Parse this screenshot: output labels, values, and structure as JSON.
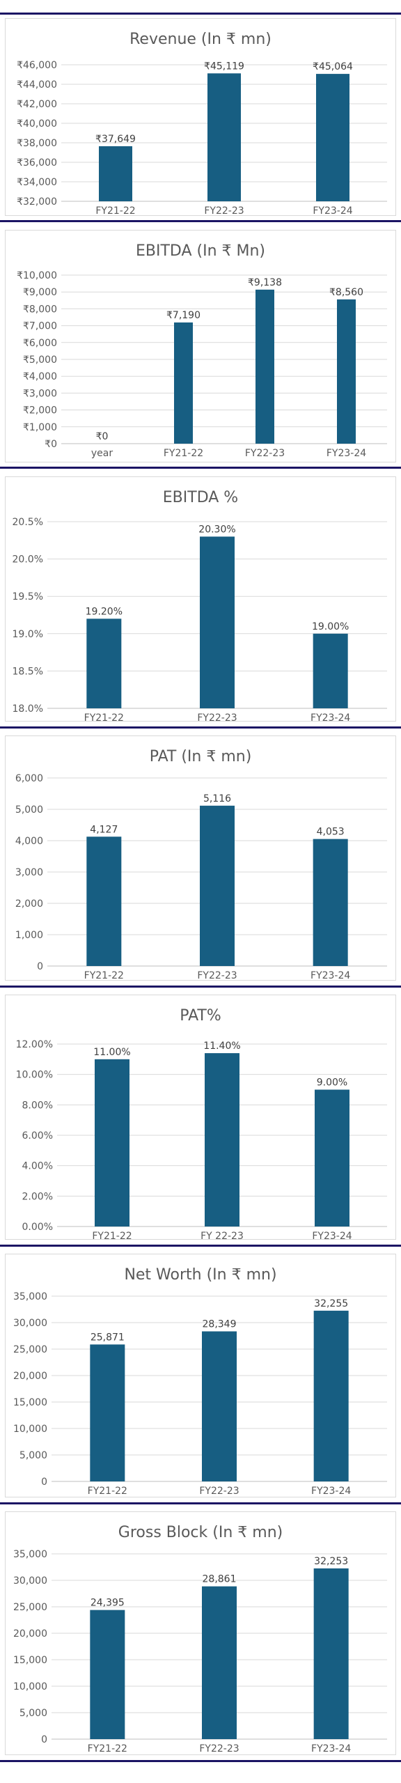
{
  "colors": {
    "bar": "#175e82",
    "separator": "#1b1464",
    "text": "#595959",
    "grid": "#d9d9d9"
  },
  "chart_data": [
    {
      "type": "bar",
      "title": "Revenue (In ₹ mn)",
      "categories": [
        "FY21-22",
        "FY22-23",
        "FY23-24"
      ],
      "values": [
        37649,
        45119,
        45064
      ],
      "data_labels": [
        "₹37,649",
        "₹45,119",
        "₹45,064"
      ],
      "ylim": [
        32000,
        46000
      ],
      "yticks": [
        32000,
        34000,
        36000,
        38000,
        40000,
        42000,
        44000,
        46000
      ],
      "ytick_labels": [
        "₹32,000",
        "₹34,000",
        "₹36,000",
        "₹38,000",
        "₹40,000",
        "₹42,000",
        "₹44,000",
        "₹46,000"
      ],
      "grid": true
    },
    {
      "type": "bar",
      "title": "EBITDA (In ₹ Mn)",
      "categories": [
        "year",
        "FY21-22",
        "FY22-23",
        "FY23-24"
      ],
      "values": [
        0,
        7190,
        9138,
        8560
      ],
      "data_labels": [
        "₹0",
        "₹7,190",
        "₹9,138",
        "₹8,560"
      ],
      "ylim": [
        0,
        10000
      ],
      "yticks": [
        0,
        1000,
        2000,
        3000,
        4000,
        5000,
        6000,
        7000,
        8000,
        9000,
        10000
      ],
      "ytick_labels": [
        "₹0",
        "₹1,000",
        "₹2,000",
        "₹3,000",
        "₹4,000",
        "₹5,000",
        "₹6,000",
        "₹7,000",
        "₹8,000",
        "₹9,000",
        "₹10,000"
      ],
      "grid": true
    },
    {
      "type": "bar",
      "title": "EBITDA %",
      "categories": [
        "FY21-22",
        "FY22-23",
        "FY23-24"
      ],
      "values": [
        19.2,
        20.3,
        19.0
      ],
      "data_labels": [
        "19.20%",
        "20.30%",
        "19.00%"
      ],
      "ylim": [
        18.0,
        20.5
      ],
      "yticks": [
        18.0,
        18.5,
        19.0,
        19.5,
        20.0,
        20.5
      ],
      "ytick_labels": [
        "18.0%",
        "18.5%",
        "19.0%",
        "19.5%",
        "20.0%",
        "20.5%"
      ],
      "grid": true
    },
    {
      "type": "bar",
      "title": "PAT (In ₹ mn)",
      "categories": [
        "FY21-22",
        "FY22-23",
        "FY23-24"
      ],
      "values": [
        4127,
        5116,
        4053
      ],
      "data_labels": [
        "4,127",
        "5,116",
        "4,053"
      ],
      "ylim": [
        0,
        6000
      ],
      "yticks": [
        0,
        1000,
        2000,
        3000,
        4000,
        5000,
        6000
      ],
      "ytick_labels": [
        "0",
        "1,000",
        "2,000",
        "3,000",
        "4,000",
        "5,000",
        "6,000"
      ],
      "grid": true
    },
    {
      "type": "bar",
      "title": "PAT%",
      "categories": [
        "FY21-22",
        "FY 22-23",
        "FY23-24"
      ],
      "values": [
        11.0,
        11.4,
        9.0
      ],
      "data_labels": [
        "11.00%",
        "11.40%",
        "9.00%"
      ],
      "ylim": [
        0,
        12
      ],
      "yticks": [
        0,
        2,
        4,
        6,
        8,
        10,
        12
      ],
      "ytick_labels": [
        "0.00%",
        "2.00%",
        "4.00%",
        "6.00%",
        "8.00%",
        "10.00%",
        "12.00%"
      ],
      "grid": true
    },
    {
      "type": "bar",
      "title": "Net Worth (In ₹ mn)",
      "categories": [
        "FY21-22",
        "FY22-23",
        "FY23-24"
      ],
      "values": [
        25871,
        28349,
        32255
      ],
      "data_labels": [
        "25,871",
        "28,349",
        "32,255"
      ],
      "ylim": [
        0,
        35000
      ],
      "yticks": [
        0,
        5000,
        10000,
        15000,
        20000,
        25000,
        30000,
        35000
      ],
      "ytick_labels": [
        "0",
        "5,000",
        "10,000",
        "15,000",
        "20,000",
        "25,000",
        "30,000",
        "35,000"
      ],
      "grid": true
    },
    {
      "type": "bar",
      "title": "Gross Block (In ₹ mn)",
      "categories": [
        "FY21-22",
        "FY22-23",
        "FY23-24"
      ],
      "values": [
        24395,
        28861,
        32253
      ],
      "data_labels": [
        "24,395",
        "28,861",
        "32,253"
      ],
      "ylim": [
        0,
        35000
      ],
      "yticks": [
        0,
        5000,
        10000,
        15000,
        20000,
        25000,
        30000,
        35000
      ],
      "ytick_labels": [
        "0",
        "5,000",
        "10,000",
        "15,000",
        "20,000",
        "25,000",
        "30,000",
        "35,000"
      ],
      "grid": true
    }
  ]
}
